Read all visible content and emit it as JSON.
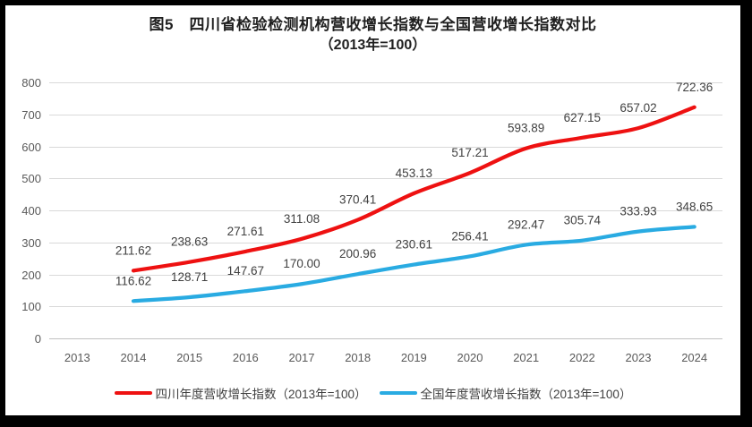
{
  "frame": {
    "border_color": "#000000",
    "background": "#ffffff"
  },
  "title": {
    "line1": "图5　四川省检验检测机构营收增长指数与全国营收增长指数对比",
    "line2": "（2013年=100）"
  },
  "chart_data": {
    "type": "line",
    "title": "图5 四川省检验检测机构营收增长指数与全国营收增长指数对比（2013年=100）",
    "categories": [
      "2013",
      "2014",
      "2015",
      "2016",
      "2017",
      "2018",
      "2019",
      "2020",
      "2021",
      "2022",
      "2023",
      "2024"
    ],
    "x_start_category": "2014",
    "series": [
      {
        "name": "四川年度营收增长指数（2013年=100）",
        "color": "#ee1111",
        "values": [
          211.62,
          238.63,
          271.61,
          311.08,
          370.41,
          453.13,
          517.21,
          593.89,
          627.15,
          657.02,
          722.36
        ],
        "labels": [
          "211.62",
          "238.63",
          "271.61",
          "311.08",
          "370.41",
          "453.13",
          "517.21",
          "593.89",
          "627.15",
          "657.02",
          "722.36"
        ]
      },
      {
        "name": "全国年度营收增长指数（2013年=100）",
        "color": "#29abe2",
        "values": [
          116.62,
          128.71,
          147.67,
          170.0,
          200.96,
          230.61,
          256.41,
          292.47,
          305.74,
          333.93,
          348.65
        ],
        "labels": [
          "116.62",
          "128.71",
          "147.67",
          "170.00",
          "200.96",
          "230.61",
          "256.41",
          "292.47",
          "305.74",
          "333.93",
          "348.65"
        ]
      }
    ],
    "ylim": [
      0,
      800
    ],
    "y_ticks": [
      "0",
      "100",
      "200",
      "300",
      "400",
      "500",
      "600",
      "700",
      "800"
    ],
    "grid": true,
    "legend_position": "bottom"
  },
  "style": {
    "grid_color": "#d9d9d9",
    "axis_line_color": "#c0c0c0",
    "tick_label_color": "#595959",
    "data_label_color": "#404040",
    "line_width": 4.25
  }
}
